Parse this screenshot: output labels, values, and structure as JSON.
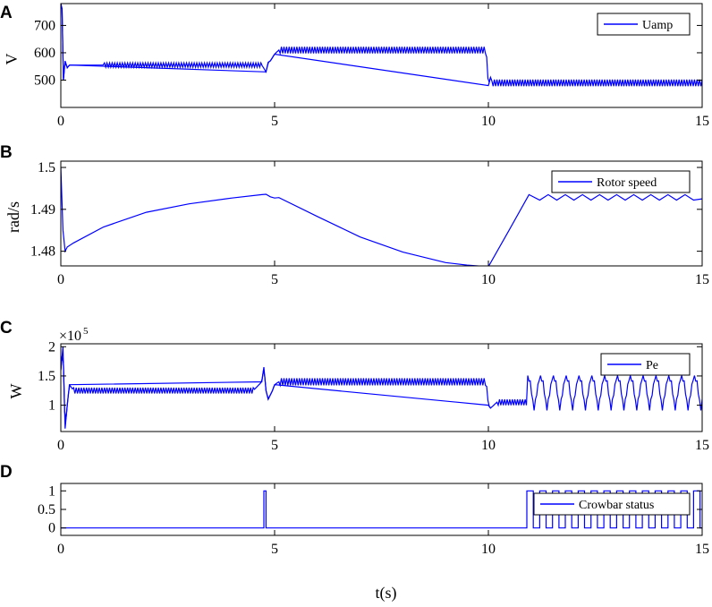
{
  "chart_data": [
    {
      "type": "line",
      "panel_label": "A",
      "ylabel": "V",
      "xlim": [
        0,
        15
      ],
      "ylim": [
        400,
        780
      ],
      "xticks": [
        0,
        5,
        10,
        15
      ],
      "yticks": [
        500,
        600,
        700
      ],
      "ytick_labels": [
        "500",
        "600",
        "700"
      ],
      "multiplier": "",
      "legend_position": "top-right",
      "series": [
        {
          "name": "Uamp",
          "color": "#0000FF",
          "x": [
            0,
            0.03,
            0.06,
            0.1,
            0.15,
            0.2,
            1,
            2,
            3,
            4,
            4.7,
            4.8,
            4.85,
            4.9,
            5.0,
            5.1,
            6,
            7,
            8,
            9,
            9.95,
            10.0,
            10.05,
            10.1,
            11,
            12,
            13,
            14,
            15
          ],
          "y": [
            780,
            760,
            500,
            570,
            545,
            555,
            555,
            555,
            555,
            555,
            555,
            530,
            565,
            570,
            595,
            610,
            610,
            610,
            610,
            610,
            610,
            480,
            510,
            490,
            490,
            490,
            490,
            490,
            490
          ],
          "ripple": [
            0,
            0,
            0,
            0,
            0,
            0,
            8,
            8,
            8,
            8,
            8,
            0,
            0,
            0,
            0,
            12,
            12,
            12,
            12,
            12,
            12,
            0,
            0,
            12,
            12,
            12,
            12,
            12,
            12
          ]
        }
      ]
    },
    {
      "type": "line",
      "panel_label": "B",
      "ylabel": "rad/s",
      "xlim": [
        0,
        15
      ],
      "ylim": [
        1.4765,
        1.5015
      ],
      "xticks": [
        0,
        5,
        10,
        15
      ],
      "yticks": [
        1.48,
        1.49,
        1.5
      ],
      "ytick_labels": [
        "1.48",
        "1.49",
        "1.5"
      ],
      "multiplier": "",
      "legend_position": "top-right",
      "series": [
        {
          "name": "Rotor speed",
          "color": "#0000FF",
          "x": [
            0,
            0.05,
            0.1,
            0.15,
            0.3,
            1,
            2,
            3,
            4,
            4.7,
            4.8,
            4.9,
            5.0,
            5.1,
            6,
            7,
            8,
            9,
            9.5,
            10.0,
            10.5,
            10.95,
            11.2,
            11.4,
            11.6,
            11.8,
            12,
            12.2,
            12.4,
            12.6,
            12.8,
            13,
            13.2,
            13.4,
            13.6,
            13.8,
            14,
            14.2,
            14.4,
            14.6,
            14.8,
            15
          ],
          "y": [
            1.5,
            1.485,
            1.48,
            1.481,
            1.482,
            1.4858,
            1.4893,
            1.4913,
            1.4927,
            1.4935,
            1.4936,
            1.493,
            1.4927,
            1.4928,
            1.4883,
            1.4834,
            1.4798,
            1.4773,
            1.4767,
            1.4763,
            1.4853,
            1.4935,
            1.4922,
            1.4935,
            1.4922,
            1.4935,
            1.4922,
            1.4935,
            1.4922,
            1.4935,
            1.4922,
            1.4935,
            1.4922,
            1.4935,
            1.4922,
            1.4935,
            1.4922,
            1.4935,
            1.4922,
            1.4935,
            1.4922,
            1.4925
          ]
        }
      ]
    },
    {
      "type": "line",
      "panel_label": "C",
      "ylabel": "W",
      "xlim": [
        0,
        15
      ],
      "ylim": [
        0.55,
        2.05
      ],
      "xticks": [
        0,
        5,
        10,
        15
      ],
      "yticks": [
        1,
        1.5,
        2
      ],
      "ytick_labels": [
        "1",
        "1.5",
        "2"
      ],
      "multiplier": "×10",
      "multiplier_exponent": "5",
      "legend_position": "top-right",
      "series": [
        {
          "name": "Pe",
          "color": "#0000FF",
          "x": [
            0,
            0.05,
            0.1,
            0.15,
            0.2,
            0.3,
            1,
            2,
            3,
            4,
            4.5,
            4.7,
            4.75,
            4.8,
            4.85,
            4.95,
            5.0,
            5.1,
            6,
            7,
            8,
            9,
            9.95,
            10.0,
            10.05,
            10.2,
            11,
            12,
            13,
            14,
            15
          ],
          "y": [
            1.6,
            2.0,
            0.6,
            1.0,
            1.35,
            1.25,
            1.25,
            1.25,
            1.25,
            1.25,
            1.25,
            1.4,
            1.65,
            1.25,
            1.1,
            1.25,
            1.35,
            1.4,
            1.4,
            1.4,
            1.4,
            1.4,
            1.4,
            1.0,
            0.95,
            1.05,
            1.05,
            1.2,
            1.2,
            1.2,
            1.2
          ],
          "ripple": [
            0,
            0,
            0,
            0,
            0,
            0.05,
            0.05,
            0.05,
            0.05,
            0.05,
            0.05,
            0,
            0,
            0,
            0,
            0,
            0,
            0.06,
            0.06,
            0.06,
            0.06,
            0.06,
            0.06,
            0,
            0,
            0.05,
            0.05,
            0.05,
            0.05,
            0.05,
            0.05
          ],
          "oscillation": {
            "from": 10.9,
            "to": 15,
            "min": 0.92,
            "max": 1.5,
            "period": 0.3
          }
        }
      ]
    },
    {
      "type": "line",
      "panel_label": "D",
      "ylabel": "",
      "xlabel": "t(s)",
      "xlim": [
        0,
        15
      ],
      "ylim": [
        -0.2,
        1.2
      ],
      "xticks": [
        0,
        5,
        10,
        15
      ],
      "yticks": [
        0,
        0.5,
        1
      ],
      "ytick_labels": [
        "0",
        "0.5",
        "1"
      ],
      "multiplier": "",
      "legend_position": "top-right",
      "series": [
        {
          "name": "Crowbar status",
          "color": "#0000FF",
          "x": [
            0,
            4.75,
            4.75,
            4.8,
            4.8,
            10.9,
            10.9,
            11.05,
            11.05,
            11.2,
            11.2,
            11.35,
            11.35,
            11.5,
            11.5,
            11.65,
            11.65,
            11.8,
            11.8,
            11.95,
            11.95,
            12.1,
            12.1,
            12.25,
            12.25,
            12.4,
            12.4,
            12.55,
            12.55,
            12.7,
            12.7,
            12.85,
            12.85,
            13.0,
            13.0,
            13.15,
            13.15,
            13.3,
            13.3,
            13.45,
            13.45,
            13.6,
            13.6,
            13.75,
            13.75,
            13.9,
            13.9,
            14.05,
            14.05,
            14.2,
            14.2,
            14.35,
            14.35,
            14.5,
            14.5,
            14.65,
            14.65,
            14.8,
            14.8,
            14.95,
            14.95,
            15
          ],
          "y": [
            0,
            0,
            1,
            1,
            0,
            0,
            1,
            1,
            0,
            0,
            1,
            1,
            0,
            0,
            1,
            1,
            0,
            0,
            1,
            1,
            0,
            0,
            1,
            1,
            0,
            0,
            1,
            1,
            0,
            0,
            1,
            1,
            0,
            0,
            1,
            1,
            0,
            0,
            1,
            1,
            0,
            0,
            1,
            1,
            0,
            0,
            1,
            1,
            0,
            0,
            1,
            1,
            0,
            0,
            1,
            1,
            0,
            0,
            1,
            1,
            0,
            0
          ]
        }
      ]
    }
  ]
}
